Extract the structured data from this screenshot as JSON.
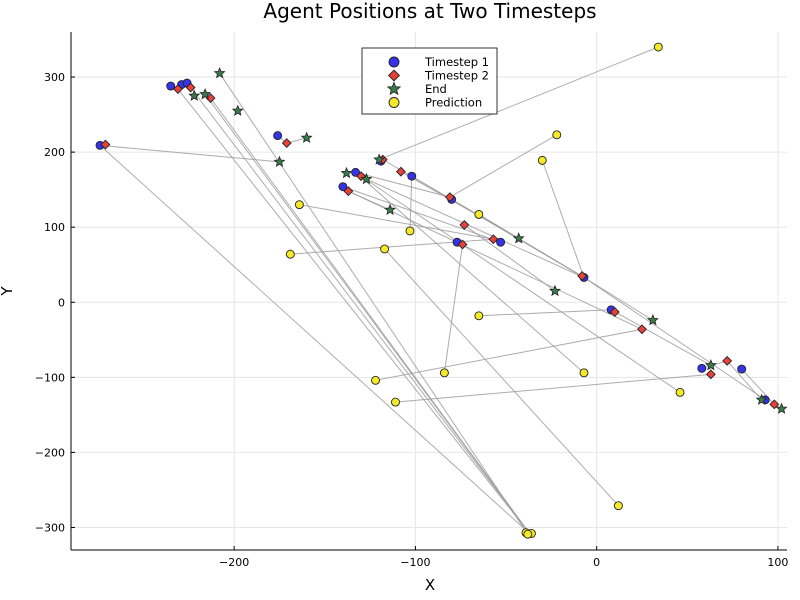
{
  "chart_data": {
    "type": "scatter",
    "title": "Agent Positions at Two Timesteps",
    "xlabel": "X",
    "ylabel": "Y",
    "xlim": [
      -290,
      105
    ],
    "ylim": [
      -330,
      360
    ],
    "xticks": [
      -200,
      -100,
      0,
      100
    ],
    "yticks": [
      -300,
      -200,
      -100,
      0,
      100,
      200,
      300
    ],
    "xtick_labels": [
      "−200",
      "−100",
      "0",
      "100"
    ],
    "ytick_labels": [
      "−300",
      "−200",
      "−100",
      "0",
      "100",
      "200",
      "300"
    ],
    "grid": true,
    "legend_position": "top-center",
    "colors": {
      "timestep1": "#3333e8",
      "timestep2": "#e8403a",
      "end": "#3b7a4a",
      "prediction": "#f5ea2a",
      "link": "#9e9e9e"
    },
    "series": [
      {
        "name": "Timestep 1",
        "marker": "circle",
        "points": [
          [
            -274,
            209
          ],
          [
            -235,
            288
          ],
          [
            -229,
            290
          ],
          [
            -226,
            292
          ],
          [
            -176,
            222
          ],
          [
            -133,
            173
          ],
          [
            -140,
            154
          ],
          [
            -119,
            188
          ],
          [
            -80,
            137
          ],
          [
            -77,
            80
          ],
          [
            -53,
            80
          ],
          [
            -102,
            168
          ],
          [
            -7,
            33
          ],
          [
            8,
            -10
          ],
          [
            58,
            -88
          ],
          [
            80,
            -89
          ],
          [
            93,
            -130
          ]
        ]
      },
      {
        "name": "Timestep 2",
        "marker": "diamond",
        "points": [
          [
            -271,
            210
          ],
          [
            -231,
            284
          ],
          [
            -224,
            286
          ],
          [
            -213,
            272
          ],
          [
            -171,
            212
          ],
          [
            -130,
            168
          ],
          [
            -137,
            148
          ],
          [
            -118,
            190
          ],
          [
            -81,
            140
          ],
          [
            -74,
            77
          ],
          [
            -57,
            84
          ],
          [
            -108,
            174
          ],
          [
            -73,
            103
          ],
          [
            -8,
            35
          ],
          [
            10,
            -13
          ],
          [
            25,
            -36
          ],
          [
            72,
            -78
          ],
          [
            63,
            -96
          ],
          [
            98,
            -136
          ]
        ]
      },
      {
        "name": "End",
        "marker": "star",
        "points": [
          [
            -208,
            305
          ],
          [
            -198,
            255
          ],
          [
            -160,
            219
          ],
          [
            -175,
            187
          ],
          [
            -138,
            172
          ],
          [
            -127,
            164
          ],
          [
            -114,
            123
          ],
          [
            -120,
            190
          ],
          [
            -43,
            85
          ],
          [
            -23,
            15
          ],
          [
            31,
            -24
          ],
          [
            63,
            -84
          ],
          [
            91,
            -130
          ],
          [
            102,
            -142
          ],
          [
            -222,
            275
          ],
          [
            -216,
            277
          ]
        ]
      },
      {
        "name": "Prediction",
        "marker": "circle",
        "points": [
          [
            34,
            340
          ],
          [
            -22,
            223
          ],
          [
            -30,
            189
          ],
          [
            -164,
            130
          ],
          [
            -65,
            117
          ],
          [
            -103,
            95
          ],
          [
            -169,
            64
          ],
          [
            -117,
            71
          ],
          [
            -65,
            -18
          ],
          [
            -122,
            -104
          ],
          [
            -84,
            -94
          ],
          [
            -7,
            -94
          ],
          [
            -111,
            -133
          ],
          [
            46,
            -120
          ],
          [
            12,
            -271
          ],
          [
            -39,
            -307
          ],
          [
            -36,
            -308
          ],
          [
            -38,
            -309
          ]
        ]
      }
    ],
    "links": [
      [
        [
          -120,
          190
        ],
        [
          34,
          340
        ]
      ],
      [
        [
          -81,
          140
        ],
        [
          -22,
          223
        ]
      ],
      [
        [
          -30,
          189
        ],
        [
          -7,
          33
        ]
      ],
      [
        [
          -164,
          130
        ],
        [
          -57,
          84
        ]
      ],
      [
        [
          -65,
          117
        ],
        [
          -7,
          33
        ]
      ],
      [
        [
          -103,
          95
        ],
        [
          -102,
          168
        ]
      ],
      [
        [
          -169,
          64
        ],
        [
          -57,
          84
        ]
      ],
      [
        [
          -117,
          71
        ],
        [
          12,
          -271
        ]
      ],
      [
        [
          -65,
          -18
        ],
        [
          8,
          -10
        ]
      ],
      [
        [
          -122,
          -104
        ],
        [
          25,
          -36
        ]
      ],
      [
        [
          -84,
          -94
        ],
        [
          -74,
          77
        ]
      ],
      [
        [
          -7,
          -94
        ],
        [
          -133,
          173
        ]
      ],
      [
        [
          -111,
          -133
        ],
        [
          63,
          -96
        ]
      ],
      [
        [
          46,
          -120
        ],
        [
          -130,
          168
        ]
      ],
      [
        [
          -274,
          209
        ],
        [
          -175,
          187
        ]
      ],
      [
        [
          -274,
          209
        ],
        [
          -37,
          -308
        ]
      ],
      [
        [
          -231,
          284
        ],
        [
          -37,
          -308
        ]
      ],
      [
        [
          -224,
          286
        ],
        [
          -37,
          -308
        ]
      ],
      [
        [
          -213,
          272
        ],
        [
          -37,
          -308
        ]
      ],
      [
        [
          -216,
          277
        ],
        [
          -37,
          -308
        ]
      ],
      [
        [
          -208,
          305
        ],
        [
          -38,
          -309
        ]
      ],
      [
        [
          -176,
          222
        ],
        [
          -171,
          212
        ]
      ],
      [
        [
          -171,
          212
        ],
        [
          -160,
          219
        ]
      ],
      [
        [
          -118,
          190
        ],
        [
          -43,
          85
        ]
      ],
      [
        [
          -80,
          137
        ],
        [
          -7,
          33
        ]
      ],
      [
        [
          -137,
          148
        ],
        [
          -114,
          123
        ]
      ],
      [
        [
          -108,
          174
        ],
        [
          -43,
          85
        ]
      ],
      [
        [
          -133,
          173
        ],
        [
          -81,
          140
        ]
      ],
      [
        [
          -73,
          103
        ],
        [
          -23,
          15
        ]
      ],
      [
        [
          -7,
          33
        ],
        [
          31,
          -24
        ]
      ],
      [
        [
          8,
          -10
        ],
        [
          63,
          -84
        ]
      ],
      [
        [
          -102,
          168
        ],
        [
          -7,
          33
        ]
      ],
      [
        [
          58,
          -88
        ],
        [
          72,
          -78
        ]
      ],
      [
        [
          72,
          -78
        ],
        [
          91,
          -130
        ]
      ],
      [
        [
          80,
          -89
        ],
        [
          98,
          -136
        ]
      ],
      [
        [
          98,
          -136
        ],
        [
          102,
          -142
        ]
      ],
      [
        [
          -7,
          33
        ],
        [
          93,
          -130
        ]
      ],
      [
        [
          -137,
          148
        ],
        [
          25,
          -36
        ]
      ],
      [
        [
          -127,
          164
        ],
        [
          -7,
          33
        ]
      ],
      [
        [
          -140,
          154
        ],
        [
          -53,
          80
        ]
      ]
    ]
  }
}
